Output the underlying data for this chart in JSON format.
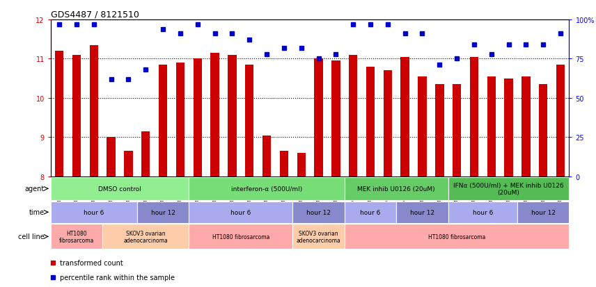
{
  "title": "GDS4487 / 8121510",
  "samples": [
    "GSM768611",
    "GSM768612",
    "GSM768613",
    "GSM768635",
    "GSM768636",
    "GSM768637",
    "GSM768614",
    "GSM768615",
    "GSM768616",
    "GSM768617",
    "GSM768618",
    "GSM768619",
    "GSM768638",
    "GSM768639",
    "GSM768640",
    "GSM768620",
    "GSM768621",
    "GSM768622",
    "GSM768623",
    "GSM768624",
    "GSM768625",
    "GSM768626",
    "GSM768627",
    "GSM768628",
    "GSM768629",
    "GSM768630",
    "GSM768631",
    "GSM768632",
    "GSM768633",
    "GSM768634"
  ],
  "bar_values": [
    11.2,
    11.1,
    11.35,
    9.0,
    8.65,
    9.15,
    10.85,
    10.9,
    11.0,
    11.15,
    11.1,
    10.85,
    9.05,
    8.65,
    8.6,
    11.0,
    10.95,
    11.1,
    10.8,
    10.7,
    11.05,
    10.55,
    10.35,
    10.35,
    11.05,
    10.55,
    10.5,
    10.55,
    10.35,
    10.85
  ],
  "dot_values": [
    97,
    97,
    97,
    62,
    62,
    68,
    94,
    91,
    97,
    91,
    91,
    87,
    78,
    82,
    82,
    75,
    78,
    97,
    97,
    97,
    91,
    91,
    71,
    75,
    84,
    78,
    84,
    84,
    84,
    91
  ],
  "bar_color": "#CC0000",
  "dot_color": "#0000CC",
  "ylim_left": [
    8,
    12
  ],
  "ylim_right": [
    0,
    100
  ],
  "yticks_left": [
    8,
    9,
    10,
    11,
    12
  ],
  "yticks_right": [
    0,
    25,
    50,
    75,
    100
  ],
  "ytick_labels_right": [
    "0",
    "25",
    "50",
    "75",
    "100%"
  ],
  "grid_values": [
    9,
    10,
    11
  ],
  "agent_row": {
    "label": "agent",
    "segments": [
      {
        "text": "DMSO control",
        "start": 0,
        "end": 8,
        "color": "#90EE90"
      },
      {
        "text": "interferon-α (500U/ml)",
        "start": 8,
        "end": 17,
        "color": "#77DD77"
      },
      {
        "text": "MEK inhib U0126 (20uM)",
        "start": 17,
        "end": 23,
        "color": "#66CC66"
      },
      {
        "text": "IFNα (500U/ml) + MEK inhib U0126\n(20uM)",
        "start": 23,
        "end": 30,
        "color": "#55BB55"
      }
    ]
  },
  "time_row": {
    "label": "time",
    "segments": [
      {
        "text": "hour 6",
        "start": 0,
        "end": 5,
        "color": "#AAAAEE"
      },
      {
        "text": "hour 12",
        "start": 5,
        "end": 8,
        "color": "#8888CC"
      },
      {
        "text": "hour 6",
        "start": 8,
        "end": 14,
        "color": "#AAAAEE"
      },
      {
        "text": "hour 12",
        "start": 14,
        "end": 17,
        "color": "#8888CC"
      },
      {
        "text": "hour 6",
        "start": 17,
        "end": 20,
        "color": "#AAAAEE"
      },
      {
        "text": "hour 12",
        "start": 20,
        "end": 23,
        "color": "#8888CC"
      },
      {
        "text": "hour 6",
        "start": 23,
        "end": 27,
        "color": "#AAAAEE"
      },
      {
        "text": "hour 12",
        "start": 27,
        "end": 30,
        "color": "#8888CC"
      }
    ]
  },
  "cellline_row": {
    "label": "cell line",
    "segments": [
      {
        "text": "HT1080\nfibrosarcoma",
        "start": 0,
        "end": 3,
        "color": "#FFAAAA"
      },
      {
        "text": "SKOV3 ovarian\nadenocarcinoma",
        "start": 3,
        "end": 8,
        "color": "#FFCCAA"
      },
      {
        "text": "HT1080 fibrosarcoma",
        "start": 8,
        "end": 14,
        "color": "#FFAAAA"
      },
      {
        "text": "SKOV3 ovarian\nadenocarcinoma",
        "start": 14,
        "end": 17,
        "color": "#FFCCAA"
      },
      {
        "text": "HT1080 fibrosarcoma",
        "start": 17,
        "end": 30,
        "color": "#FFAAAA"
      }
    ]
  },
  "legend": [
    {
      "symbol": "s",
      "color": "#CC0000",
      "label": "transformed count"
    },
    {
      "symbol": "s",
      "color": "#0000CC",
      "label": "percentile rank within the sample"
    }
  ]
}
